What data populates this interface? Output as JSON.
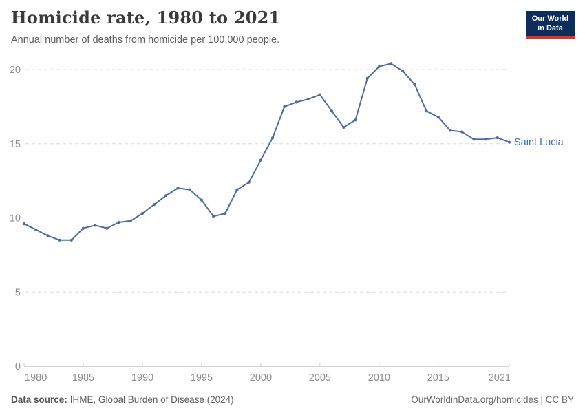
{
  "header": {
    "title": "Homicide rate, 1980 to 2021",
    "subtitle": "Annual number of deaths from homicide per 100,000 people.",
    "logo": {
      "line1": "Our World",
      "line2": "in Data",
      "bg_color": "#0d2e5a",
      "accent_color": "#d8352c",
      "text_color": "#ffffff"
    }
  },
  "chart_data": {
    "type": "line",
    "title": "Homicide rate, 1980 to 2021",
    "series_label": "Saint Lucia",
    "x": [
      1980,
      1981,
      1982,
      1983,
      1984,
      1985,
      1986,
      1987,
      1988,
      1989,
      1990,
      1991,
      1992,
      1993,
      1994,
      1995,
      1996,
      1997,
      1998,
      1999,
      2000,
      2001,
      2002,
      2003,
      2004,
      2005,
      2006,
      2007,
      2008,
      2009,
      2010,
      2011,
      2012,
      2013,
      2014,
      2015,
      2016,
      2017,
      2018,
      2019,
      2020,
      2021
    ],
    "values": [
      9.6,
      9.2,
      8.8,
      8.5,
      8.5,
      9.3,
      9.5,
      9.3,
      9.7,
      9.8,
      10.3,
      10.9,
      11.5,
      12.0,
      11.9,
      11.2,
      10.1,
      10.3,
      11.9,
      12.4,
      13.9,
      15.4,
      17.5,
      17.8,
      18.0,
      18.3,
      17.2,
      16.1,
      16.6,
      19.4,
      20.2,
      20.4,
      19.9,
      19.0,
      17.2,
      16.8,
      15.9,
      15.8,
      15.3,
      15.3,
      15.4,
      15.1
    ],
    "xlabel": "",
    "ylabel": "",
    "ylim": [
      0,
      21
    ],
    "yticks": [
      0,
      5,
      10,
      15,
      20
    ],
    "xticks": [
      1980,
      1985,
      1990,
      1995,
      2000,
      2005,
      2010,
      2015,
      2021
    ],
    "grid": "horizontal-dashed",
    "legend_position": "end-of-line",
    "colors": {
      "line": "#4c6ba8",
      "series_label": "#3d6cb0",
      "grid": "#dcdcdc",
      "axis": "#a8a8a8",
      "tick": "#c9c9c9",
      "tick_label": "#8e8e8e"
    }
  },
  "footer": {
    "source_label": "Data source:",
    "source_rest": "IHME, Global Burden of Disease (2024)",
    "credit": "OurWorldinData.org/homicides | CC BY"
  }
}
